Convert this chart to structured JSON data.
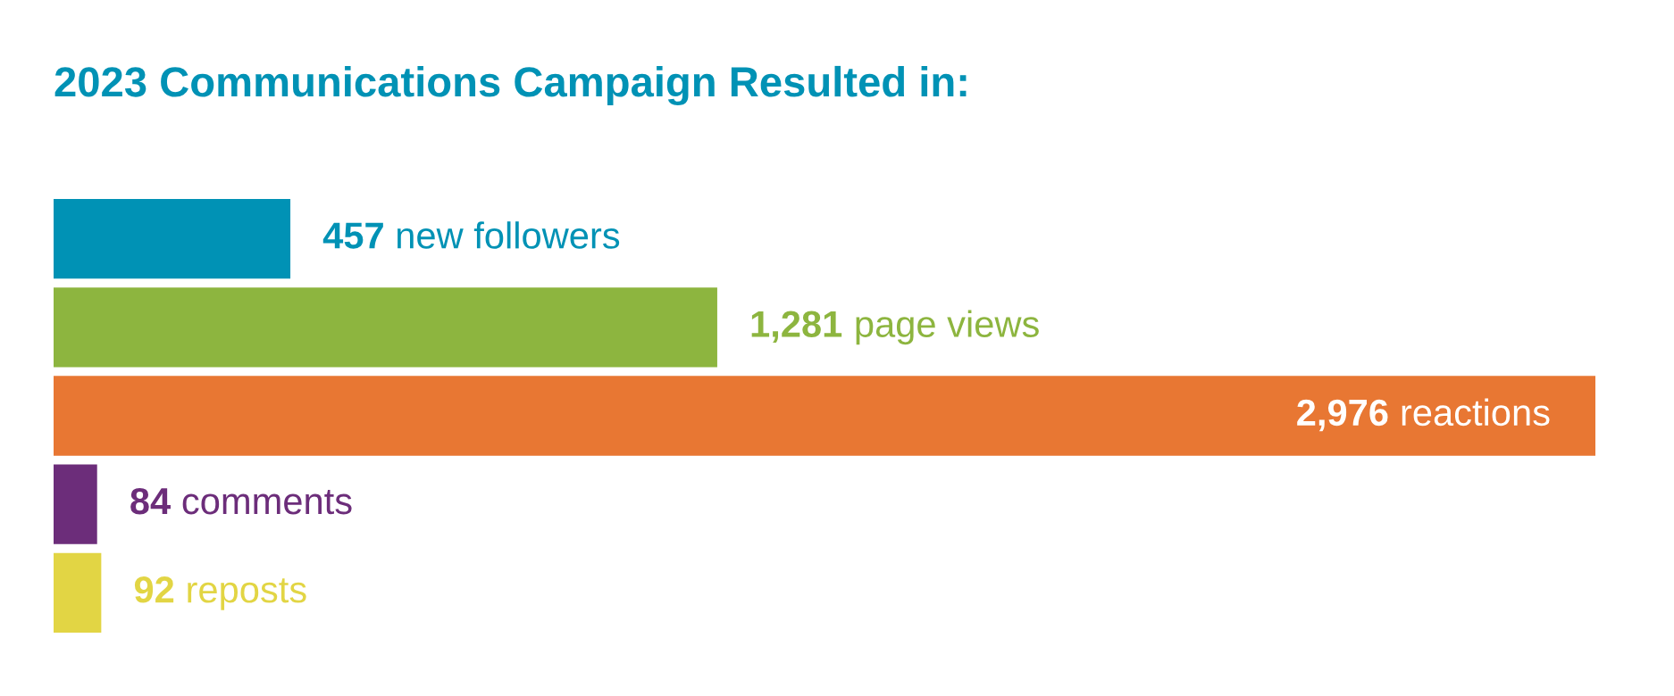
{
  "chart_data": {
    "type": "bar",
    "orientation": "horizontal",
    "title": "2023 Communications Campaign Resulted in:",
    "categories": [
      "new followers",
      "page views",
      "reactions",
      "comments",
      "reposts"
    ],
    "values": [
      457,
      1281,
      2976,
      84,
      92
    ],
    "value_labels": [
      "457",
      "1,281",
      "2,976",
      "84",
      "92"
    ],
    "colors": [
      "#0092b5",
      "#8db53f",
      "#e87733",
      "#6c2d7a",
      "#e2d544"
    ]
  }
}
